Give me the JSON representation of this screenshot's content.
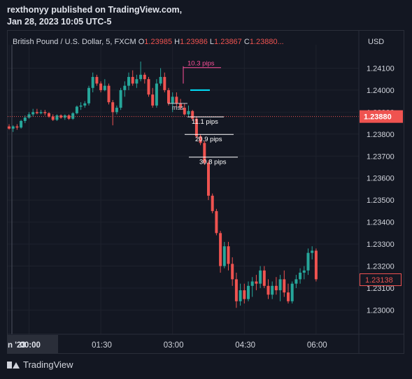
{
  "publisher": {
    "line1": "rexthonyy published on TradingView.com,",
    "line2": "Jan 28, 2023 10:05 UTC-5"
  },
  "legend": {
    "symbol": "British Pound / U.S. Dollar, 5, FXCM",
    "o_label": "O",
    "o_value": "1.23985",
    "h_label": "H",
    "h_value": "1.23986",
    "l_label": "L",
    "l_value": "1.23867",
    "c_label": "C",
    "c_value": "1.23880...",
    "currency": "USD"
  },
  "footer": {
    "brand": "TradingView"
  },
  "colors": {
    "up": "#26a69a",
    "down": "#ef5350",
    "bg": "#131722",
    "grid": "#1e222d",
    "text": "#d1d4dc"
  },
  "chart_data": {
    "type": "candlestick",
    "ylim": [
      1.2289,
      1.2427
    ],
    "y_ticks": [
      "1.24100",
      "1.24000",
      "1.23900",
      "1.23800",
      "1.23700",
      "1.23600",
      "1.23500",
      "1.23400",
      "1.23300",
      "1.23200",
      "1.23100",
      "1.23000"
    ],
    "x_ticks": [
      {
        "label": "n '23",
        "index": 0
      },
      {
        "label": "00:00",
        "index": 5
      },
      {
        "label": "01:30",
        "index": 23
      },
      {
        "label": "03:00",
        "index": 41
      },
      {
        "label": "04:30",
        "index": 59
      },
      {
        "label": "06:00",
        "index": 77
      }
    ],
    "last_price": "1.23880",
    "last_price_value": 1.2388,
    "second_price": "1.23138",
    "second_price_value": 1.23138,
    "annotations": [
      {
        "text": "10.3 pips",
        "color": "#ff4f9a",
        "y": 1.24115
      },
      {
        "text": "mss",
        "color": "#d1d4dc",
        "y": 1.2393
      },
      {
        "text": "11.1 pips",
        "color": "#ffffff",
        "y": 1.2385
      },
      {
        "text": "20.9 pips",
        "color": "#ffffff",
        "y": 1.2377
      },
      {
        "text": "30.8 pips",
        "color": "#ffffff",
        "y": 1.2367
      }
    ],
    "candles": [
      [
        1.23835,
        1.23845,
        1.2382,
        1.23825
      ],
      [
        1.23825,
        1.2384,
        1.2381,
        1.23835
      ],
      [
        1.23835,
        1.23845,
        1.2382,
        1.2383
      ],
      [
        1.2383,
        1.23865,
        1.23825,
        1.2386
      ],
      [
        1.2386,
        1.23885,
        1.2385,
        1.23875
      ],
      [
        1.23875,
        1.239,
        1.2387,
        1.2389
      ],
      [
        1.2389,
        1.23915,
        1.2388,
        1.239
      ],
      [
        1.239,
        1.23915,
        1.2389,
        1.23895
      ],
      [
        1.23895,
        1.2391,
        1.2389,
        1.239
      ],
      [
        1.239,
        1.2391,
        1.23885,
        1.23895
      ],
      [
        1.23895,
        1.239,
        1.23875,
        1.2388
      ],
      [
        1.2388,
        1.2389,
        1.2386,
        1.23865
      ],
      [
        1.23865,
        1.2389,
        1.2386,
        1.23885
      ],
      [
        1.23885,
        1.2389,
        1.2387,
        1.23875
      ],
      [
        1.23875,
        1.2389,
        1.23865,
        1.23885
      ],
      [
        1.23885,
        1.2389,
        1.23865,
        1.2387
      ],
      [
        1.2387,
        1.239,
        1.23865,
        1.23895
      ],
      [
        1.23895,
        1.2393,
        1.2389,
        1.23925
      ],
      [
        1.23925,
        1.23945,
        1.2391,
        1.2393
      ],
      [
        1.2393,
        1.2395,
        1.2392,
        1.2394
      ],
      [
        1.2394,
        1.2402,
        1.2393,
        1.2401
      ],
      [
        1.2401,
        1.2408,
        1.2399,
        1.2406
      ],
      [
        1.2406,
        1.2407,
        1.2402,
        1.2403
      ],
      [
        1.2403,
        1.2404,
        1.2399,
        1.24
      ],
      [
        1.24,
        1.2405,
        1.23995,
        1.2402
      ],
      [
        1.2402,
        1.2403,
        1.23935,
        1.23945
      ],
      [
        1.23945,
        1.23955,
        1.2384,
        1.239
      ],
      [
        1.239,
        1.2393,
        1.2389,
        1.2392
      ],
      [
        1.2392,
        1.2401,
        1.2391,
        1.24
      ],
      [
        1.24,
        1.2404,
        1.2397,
        1.2402
      ],
      [
        1.2402,
        1.2408,
        1.24,
        1.2406
      ],
      [
        1.2406,
        1.2409,
        1.2402,
        1.2403
      ],
      [
        1.2403,
        1.2407,
        1.2401,
        1.2405
      ],
      [
        1.2405,
        1.2413,
        1.2404,
        1.2407
      ],
      [
        1.2407,
        1.2408,
        1.2403,
        1.2405
      ],
      [
        1.2405,
        1.2406,
        1.2397,
        1.2398
      ],
      [
        1.2398,
        1.2401,
        1.2392,
        1.2393
      ],
      [
        1.2393,
        1.2405,
        1.2392,
        1.2403
      ],
      [
        1.2403,
        1.241,
        1.2402,
        1.2406
      ],
      [
        1.2406,
        1.2408,
        1.2399,
        1.24
      ],
      [
        1.24,
        1.2401,
        1.2393,
        1.2394
      ],
      [
        1.2394,
        1.2399,
        1.239,
        1.2397
      ],
      [
        1.2397,
        1.2399,
        1.2392,
        1.2394
      ],
      [
        1.2394,
        1.2396,
        1.2391,
        1.2392
      ],
      [
        1.2392,
        1.2394,
        1.23885,
        1.2389
      ],
      [
        1.2389,
        1.2393,
        1.2388,
        1.23905
      ],
      [
        1.23905,
        1.2391,
        1.2386,
        1.2387
      ],
      [
        1.2387,
        1.2388,
        1.2378,
        1.2379
      ],
      [
        1.2379,
        1.238,
        1.2375,
        1.2376
      ],
      [
        1.2376,
        1.2377,
        1.2366,
        1.2367
      ],
      [
        1.2367,
        1.2368,
        1.235,
        1.2352
      ],
      [
        1.2352,
        1.2353,
        1.2344,
        1.2345
      ],
      [
        1.2345,
        1.2346,
        1.2334,
        1.2335
      ],
      [
        1.2335,
        1.2336,
        1.2317,
        1.232
      ],
      [
        1.232,
        1.2331,
        1.2319,
        1.2329
      ],
      [
        1.2329,
        1.2331,
        1.2318,
        1.2321
      ],
      [
        1.2321,
        1.2324,
        1.2311,
        1.2314
      ],
      [
        1.2314,
        1.2317,
        1.2301,
        1.2304
      ],
      [
        1.2304,
        1.2312,
        1.2302,
        1.2309
      ],
      [
        1.2309,
        1.2312,
        1.2303,
        1.2305
      ],
      [
        1.2305,
        1.2313,
        1.2304,
        1.2311
      ],
      [
        1.2311,
        1.2315,
        1.2306,
        1.2313
      ],
      [
        1.2313,
        1.2316,
        1.2309,
        1.2312
      ],
      [
        1.2312,
        1.232,
        1.231,
        1.2318
      ],
      [
        1.2318,
        1.232,
        1.231,
        1.2311
      ],
      [
        1.2311,
        1.2314,
        1.2305,
        1.2307
      ],
      [
        1.2307,
        1.2313,
        1.2305,
        1.2311
      ],
      [
        1.2311,
        1.2315,
        1.2307,
        1.2309
      ],
      [
        1.2309,
        1.2316,
        1.2304,
        1.2314
      ],
      [
        1.2314,
        1.2318,
        1.2306,
        1.2308
      ],
      [
        1.2308,
        1.2312,
        1.2303,
        1.2304
      ],
      [
        1.2304,
        1.2313,
        1.2303,
        1.2312
      ],
      [
        1.2312,
        1.2316,
        1.231,
        1.2314
      ],
      [
        1.2314,
        1.2319,
        1.2312,
        1.2317
      ],
      [
        1.2317,
        1.232,
        1.2314,
        1.2318
      ],
      [
        1.2318,
        1.2328,
        1.2316,
        1.2326
      ],
      [
        1.2326,
        1.2329,
        1.2323,
        1.2327
      ],
      [
        1.2327,
        1.2328,
        1.2313,
        1.2314
      ]
    ]
  }
}
